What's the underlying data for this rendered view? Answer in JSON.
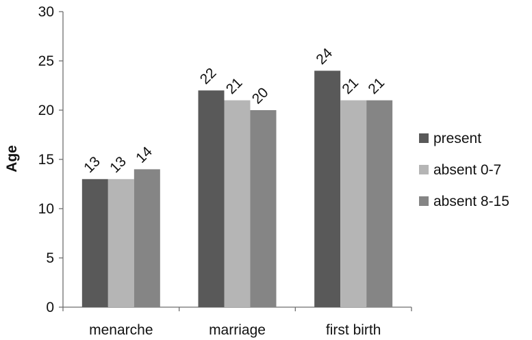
{
  "chart_data": {
    "type": "bar",
    "title": "",
    "xlabel": "",
    "ylabel": "Age",
    "ylim": [
      0,
      30
    ],
    "yticks": [
      0,
      5,
      10,
      15,
      20,
      25,
      30
    ],
    "grid": false,
    "legend_position": "right",
    "categories": [
      "menarche",
      "marriage",
      "first birth"
    ],
    "series": [
      {
        "name": "present",
        "color": "#595959",
        "values": [
          13,
          22,
          24
        ]
      },
      {
        "name": "absent 0-7",
        "color": "#b5b5b5",
        "values": [
          13,
          21,
          21
        ]
      },
      {
        "name": "absent 8-15",
        "color": "#858585",
        "values": [
          14,
          20,
          21
        ]
      }
    ],
    "data_labels": true
  }
}
